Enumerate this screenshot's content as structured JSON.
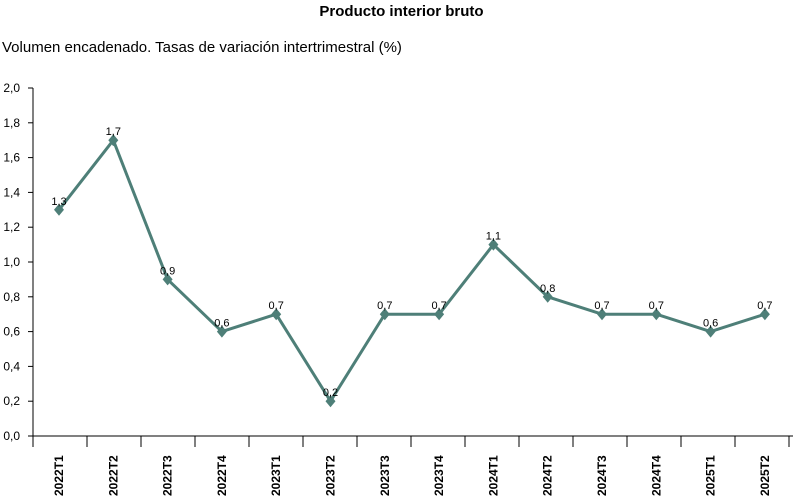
{
  "chart_data": {
    "type": "line",
    "title": "Producto interior bruto",
    "subtitle": "Volumen encadenado. Tasas de variación intertrimestral (%)",
    "xlabel": "",
    "ylabel": "",
    "categories": [
      "2022T1",
      "2022T2",
      "2022T3",
      "2022T4",
      "2023T1",
      "2023T2",
      "2023T3",
      "2023T4",
      "2024T1",
      "2024T2",
      "2024T3",
      "2024T4",
      "2025T1",
      "2025T2"
    ],
    "series": [
      {
        "values": [
          1.3,
          1.7,
          0.9,
          0.6,
          0.7,
          0.2,
          0.7,
          0.7,
          1.1,
          0.8,
          0.7,
          0.7,
          0.6,
          0.7
        ]
      }
    ],
    "data_labels": [
      "1,3",
      "1,7",
      "0,9",
      "0,6",
      "0,7",
      "0,2",
      "0,7",
      "0,7",
      "1,1",
      "0,8",
      "0,7",
      "0,7",
      "0,6",
      "0,7"
    ],
    "y_ticks": [
      "0,0",
      "0,2",
      "0,4",
      "0,6",
      "0,8",
      "1,0",
      "1,2",
      "1,4",
      "1,6",
      "1,8",
      "2,0"
    ],
    "ylim": [
      0,
      2.0
    ],
    "grid": false,
    "legend": "none",
    "line_color": "#4e7f78",
    "marker": "diamond"
  }
}
